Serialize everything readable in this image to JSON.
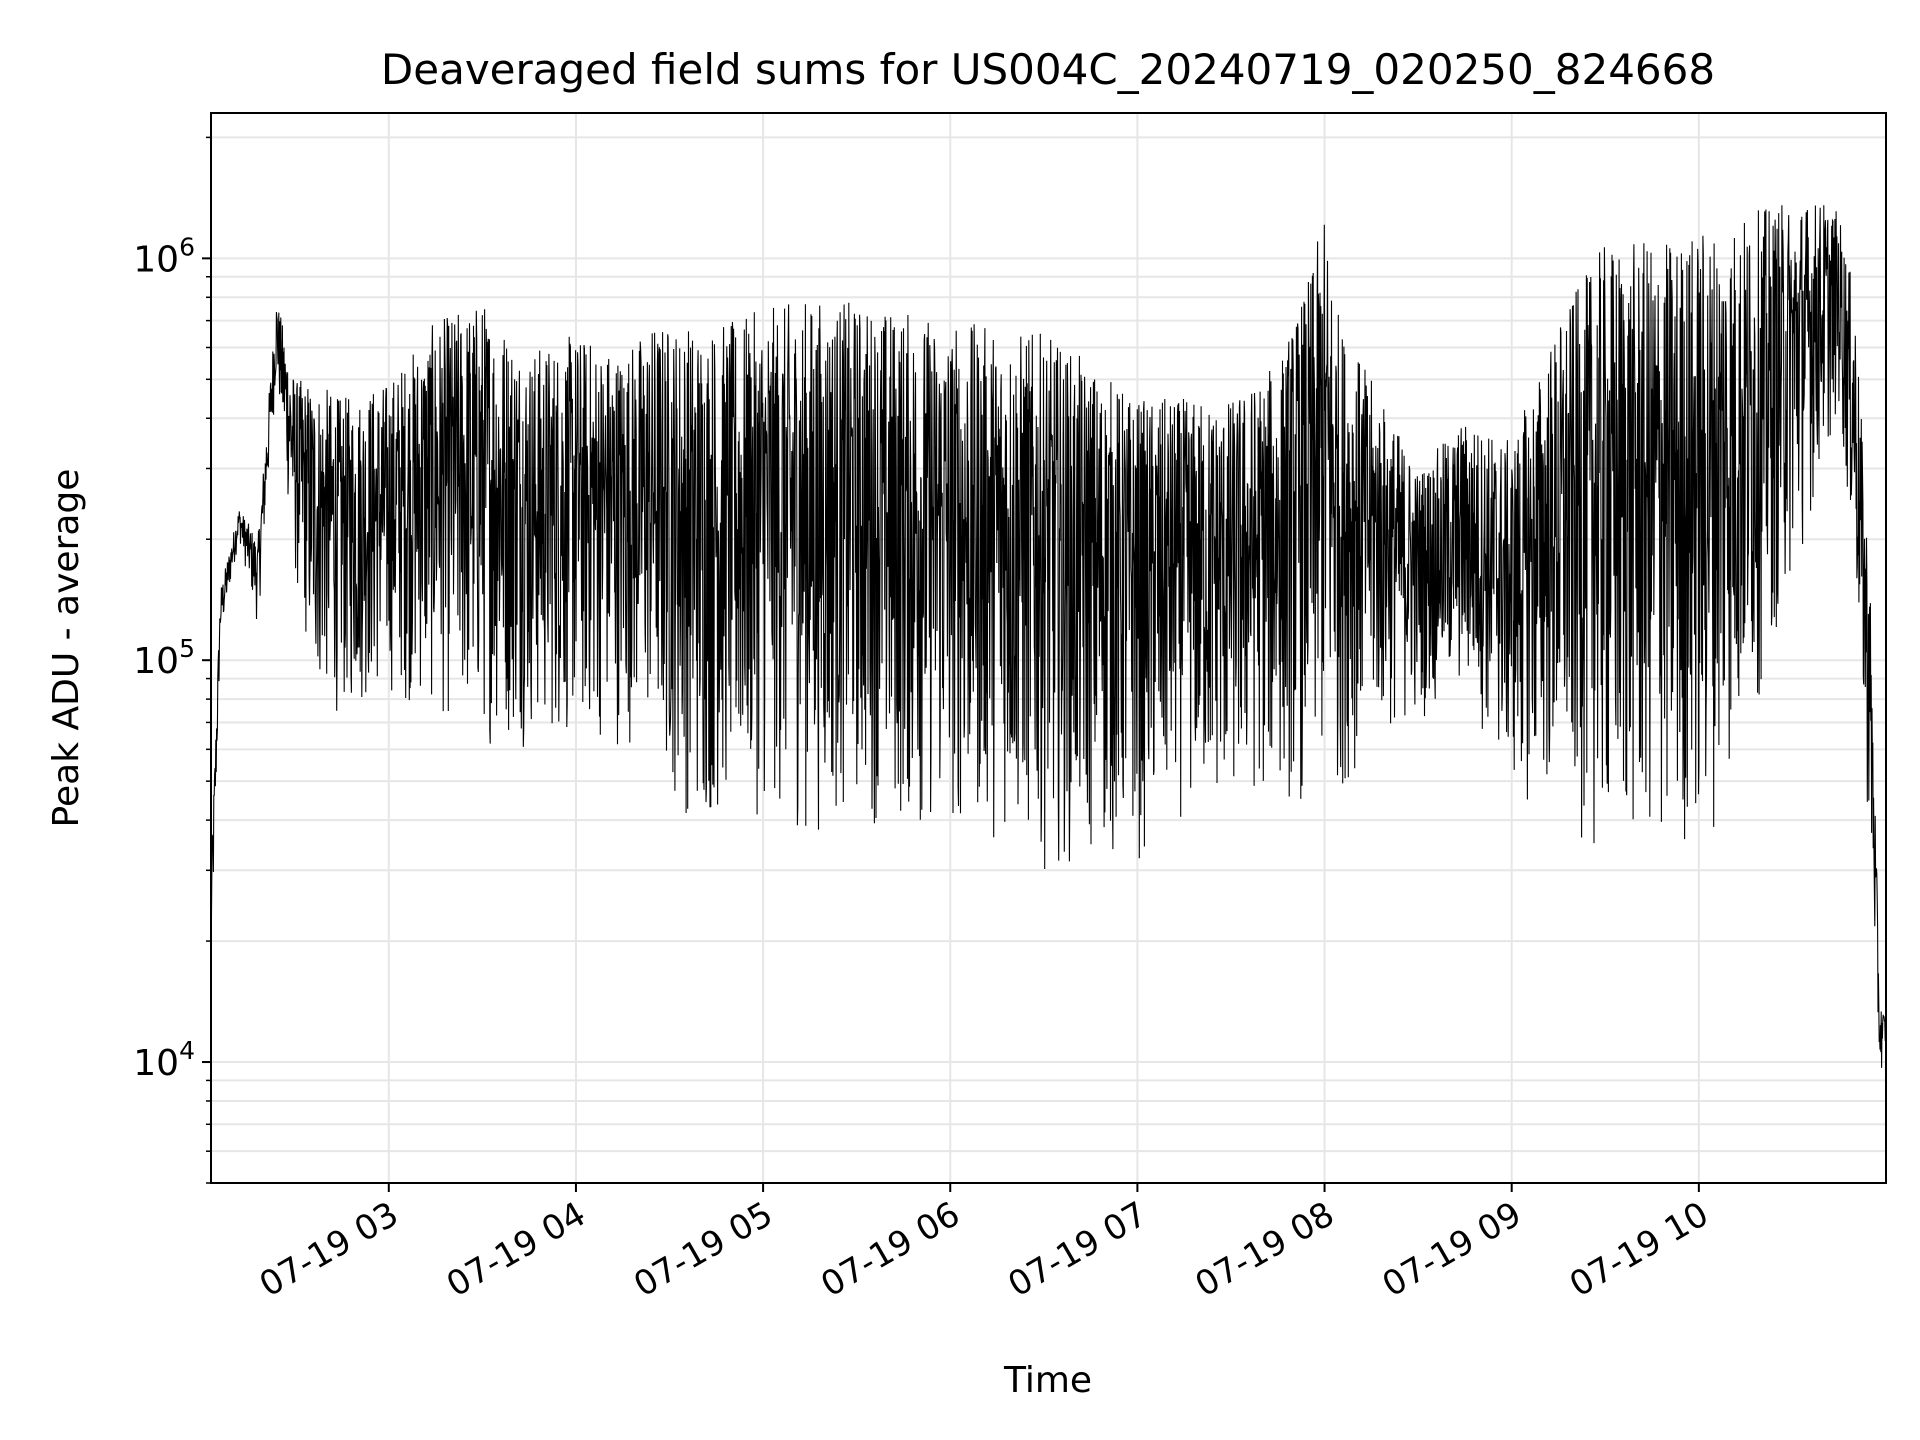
{
  "chart_data": {
    "type": "line",
    "title": "Deaveraged field sums for US004C_20240719_020250_824668",
    "xlabel": "Time",
    "ylabel": "Peak ADU - average",
    "x_range": [
      "07-19 02:03",
      "07-19 11:00"
    ],
    "y_scale": "log",
    "ylim": [
      5000,
      2300000
    ],
    "x_ticks": [
      {
        "time": "07-19 03:00",
        "label": "07-19 03"
      },
      {
        "time": "07-19 04:00",
        "label": "07-19 04"
      },
      {
        "time": "07-19 05:00",
        "label": "07-19 05"
      },
      {
        "time": "07-19 06:00",
        "label": "07-19 06"
      },
      {
        "time": "07-19 07:00",
        "label": "07-19 07"
      },
      {
        "time": "07-19 08:00",
        "label": "07-19 08"
      },
      {
        "time": "07-19 09:00",
        "label": "07-19 09"
      },
      {
        "time": "07-19 10:00",
        "label": "07-19 10"
      }
    ],
    "y_ticks": [
      {
        "value": 10000,
        "base": "10",
        "exp": "4"
      },
      {
        "value": 100000,
        "base": "10",
        "exp": "5"
      },
      {
        "value": 1000000,
        "base": "10",
        "exp": "6"
      }
    ],
    "grid": true,
    "line_color": "#000000",
    "envelope": {
      "x": [
        "07-19 02:03",
        "07-19 02:06",
        "07-19 02:12",
        "07-19 02:18",
        "07-19 02:24",
        "07-19 02:30",
        "07-19 02:36",
        "07-19 02:45",
        "07-19 03:00",
        "07-19 03:15",
        "07-19 03:30",
        "07-19 03:45",
        "07-19 04:00",
        "07-19 04:15",
        "07-19 04:25",
        "07-19 04:30",
        "07-19 04:40",
        "07-19 04:50",
        "07-19 05:00",
        "07-19 05:15",
        "07-19 05:30",
        "07-19 05:45",
        "07-19 06:00",
        "07-19 06:15",
        "07-19 06:30",
        "07-19 06:45",
        "07-19 07:00",
        "07-19 07:15",
        "07-19 07:30",
        "07-19 07:45",
        "07-19 07:55",
        "07-19 08:00",
        "07-19 08:05",
        "07-19 08:15",
        "07-19 08:30",
        "07-19 08:45",
        "07-19 09:00",
        "07-19 09:15",
        "07-19 09:30",
        "07-19 09:45",
        "07-19 10:00",
        "07-19 10:15",
        "07-19 10:30",
        "07-19 10:40",
        "07-19 10:45",
        "07-19 10:50",
        "07-19 10:55",
        "07-19 10:58",
        "07-19 11:00"
      ],
      "low": [
        15000,
        110000,
        200000,
        120000,
        500000,
        150000,
        80000,
        70000,
        80000,
        70000,
        60000,
        60000,
        60000,
        60000,
        60000,
        45000,
        35000,
        40000,
        40000,
        35000,
        40000,
        35000,
        35000,
        35000,
        30000,
        30000,
        30000,
        40000,
        40000,
        45000,
        40000,
        45000,
        45000,
        60000,
        70000,
        80000,
        45000,
        40000,
        30000,
        30000,
        30000,
        60000,
        150000,
        300000,
        400000,
        150000,
        30000,
        9000,
        11000
      ],
      "high": [
        30000,
        150000,
        240000,
        200000,
        800000,
        500000,
        500000,
        450000,
        500000,
        700000,
        800000,
        600000,
        650000,
        600000,
        700000,
        700000,
        700000,
        700000,
        750000,
        800000,
        780000,
        750000,
        700000,
        680000,
        650000,
        550000,
        450000,
        450000,
        450000,
        550000,
        900000,
        1300000,
        700000,
        500000,
        300000,
        400000,
        350000,
        700000,
        1100000,
        1100000,
        1200000,
        1300000,
        1400000,
        1400000,
        1300000,
        800000,
        150000,
        14000,
        13000
      ]
    }
  }
}
